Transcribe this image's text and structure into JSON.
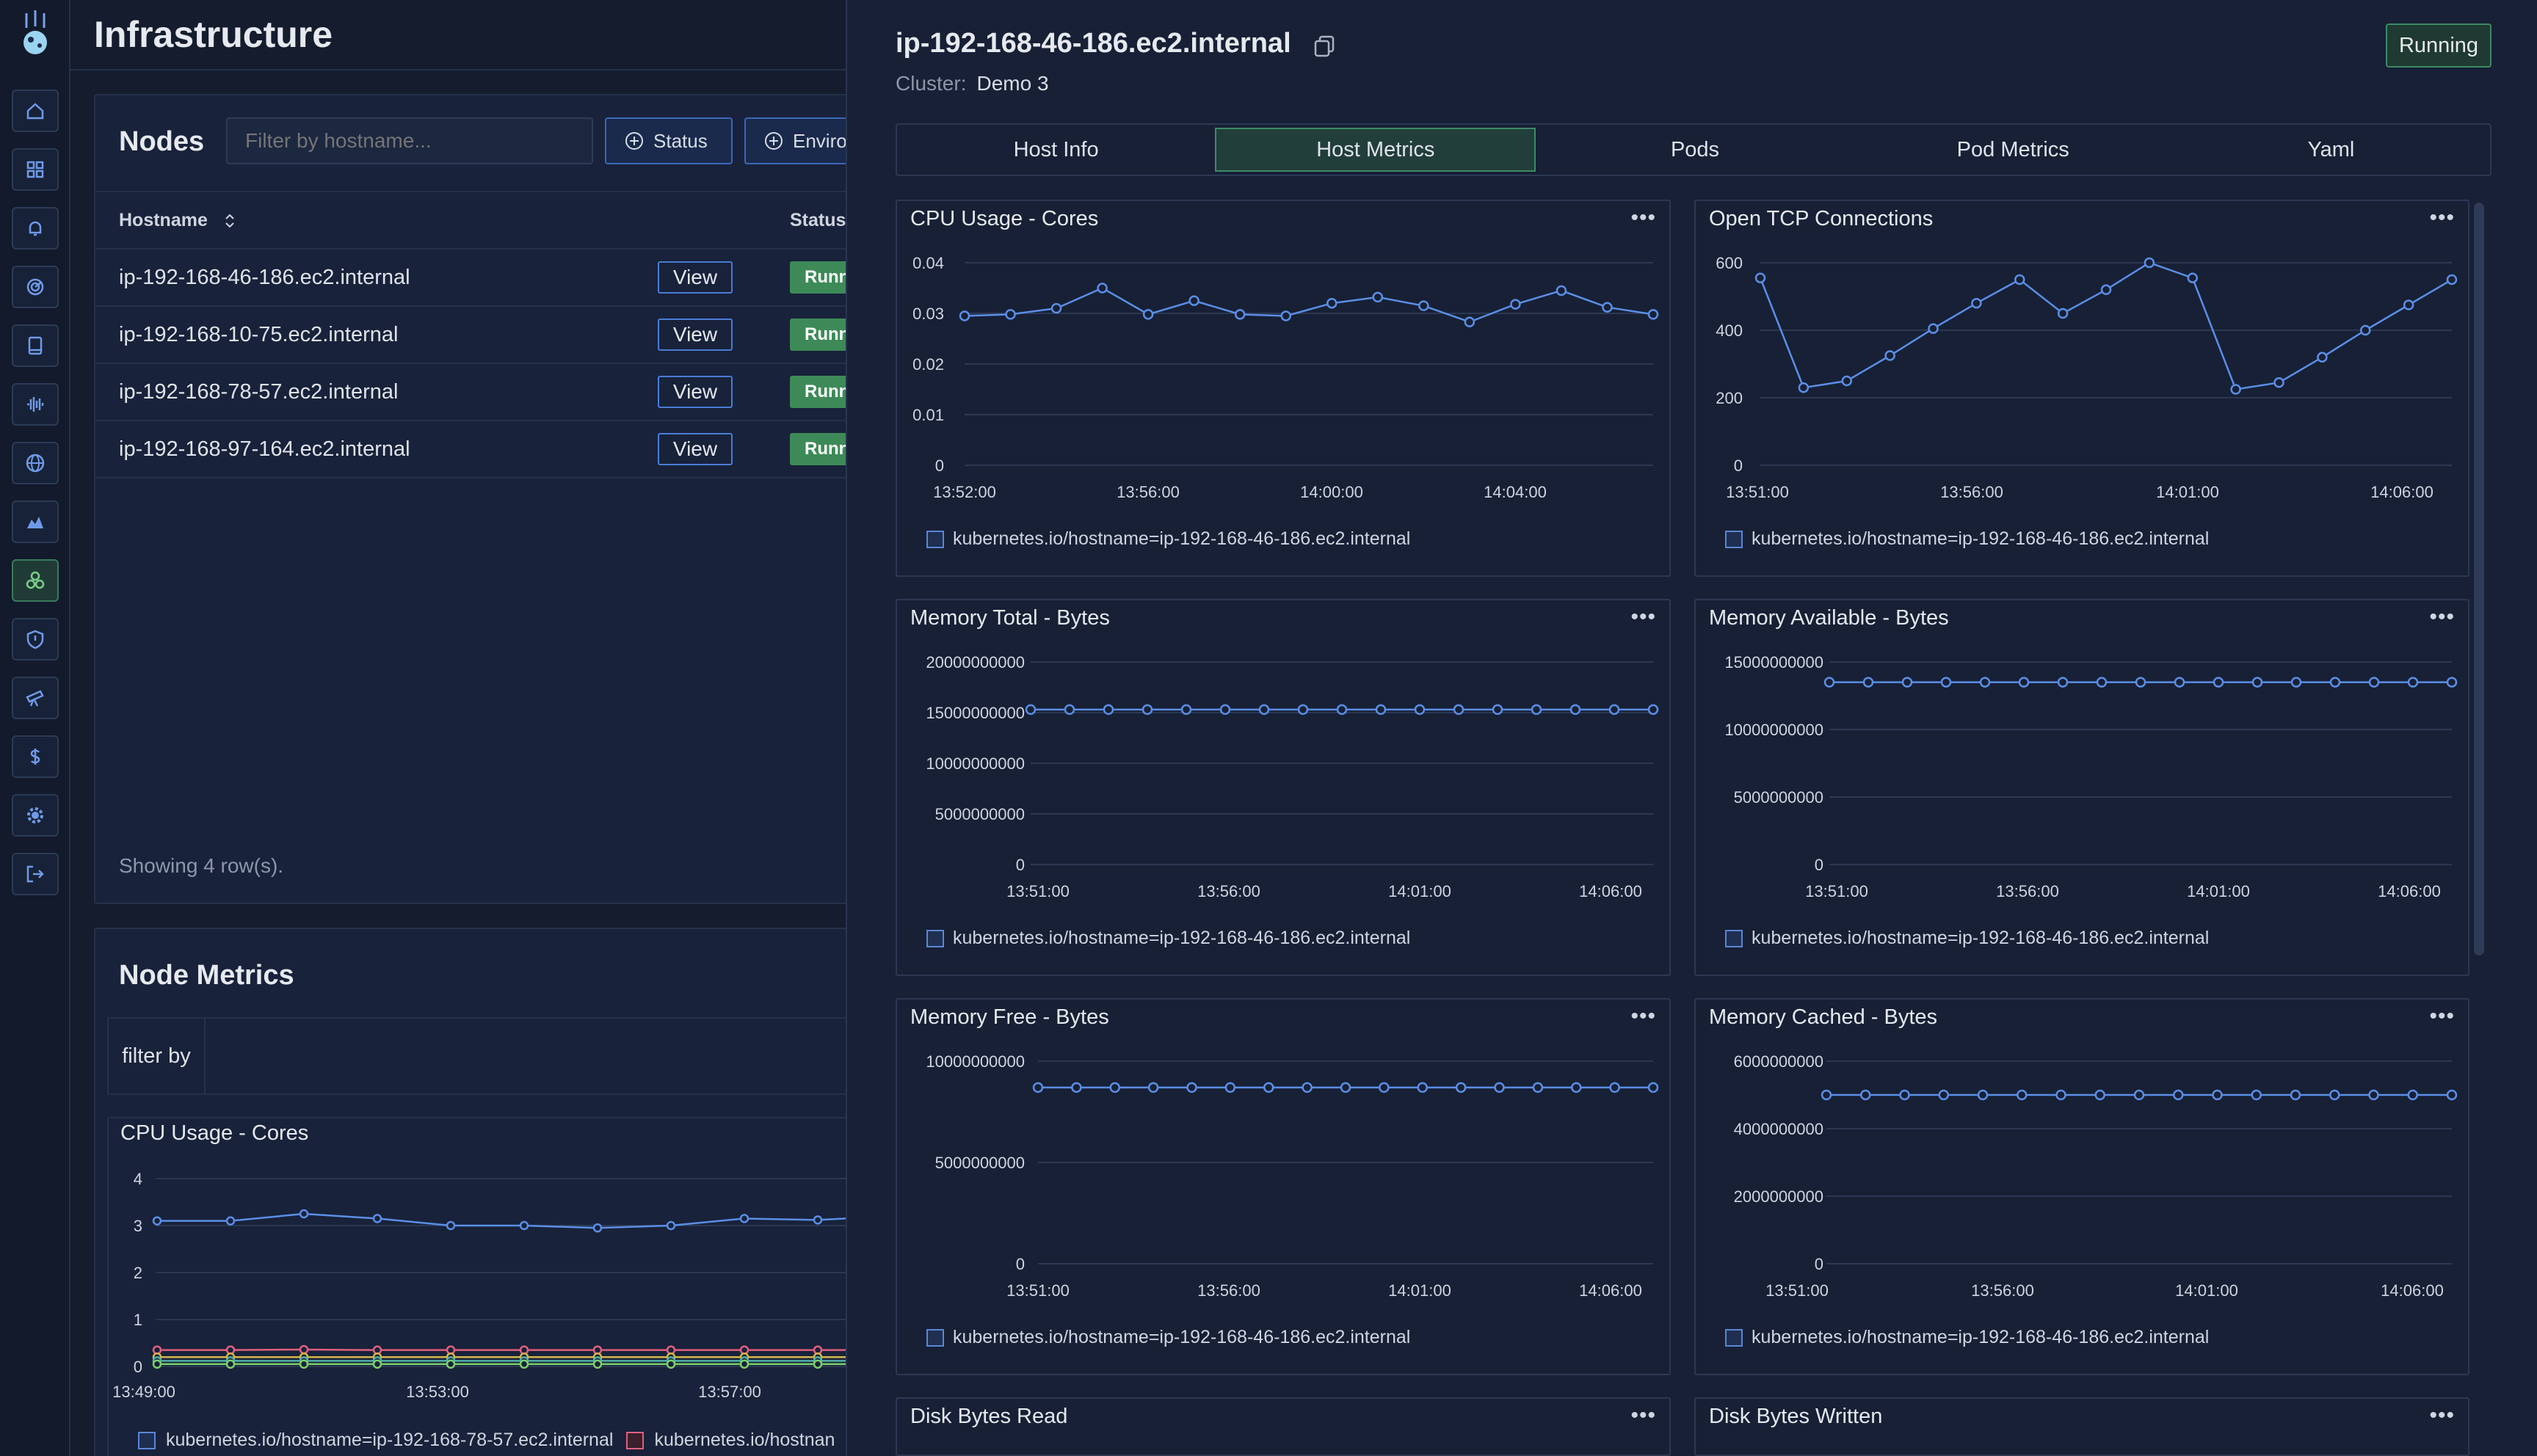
{
  "page": {
    "title": "Infrastructure"
  },
  "sidebar": {
    "items": [
      {
        "icon": "home-icon"
      },
      {
        "icon": "dashboard-icon"
      },
      {
        "icon": "bell-icon"
      },
      {
        "icon": "radar-icon"
      },
      {
        "icon": "book-icon"
      },
      {
        "icon": "waveform-icon"
      },
      {
        "icon": "globe-icon"
      },
      {
        "icon": "map-icon"
      },
      {
        "icon": "cluster-icon",
        "active": true
      },
      {
        "icon": "shield-icon"
      },
      {
        "icon": "telescope-icon"
      },
      {
        "icon": "dollar-icon"
      },
      {
        "icon": "gear-icon"
      },
      {
        "icon": "logout-icon"
      }
    ]
  },
  "nodes": {
    "title": "Nodes",
    "filter_placeholder": "Filter by hostname...",
    "status_btn": "Status",
    "env_btn": "Enviro",
    "headers": {
      "hostname": "Hostname",
      "status": "Status"
    },
    "rows": [
      {
        "hostname": "ip-192-168-46-186.ec2.internal",
        "view": "View",
        "status": "Running"
      },
      {
        "hostname": "ip-192-168-10-75.ec2.internal",
        "view": "View",
        "status": "Running"
      },
      {
        "hostname": "ip-192-168-78-57.ec2.internal",
        "view": "View",
        "status": "Running"
      },
      {
        "hostname": "ip-192-168-97-164.ec2.internal",
        "view": "View",
        "status": "Running"
      }
    ],
    "showing": "Showing 4 row(s)."
  },
  "node_metrics": {
    "title": "Node Metrics",
    "filter_label": "filter by",
    "chart_title": "CPU Usage - Cores",
    "legend": [
      "kubernetes.io/hostname=ip-192-168-78-57.ec2.internal",
      "kubernetes.io/hostnan"
    ]
  },
  "drawer": {
    "title": "ip-192-168-46-186.ec2.internal",
    "cluster_label": "Cluster:",
    "cluster_value": "Demo 3",
    "status": "Running",
    "tabs": [
      "Host Info",
      "Host Metrics",
      "Pods",
      "Pod Metrics",
      "Yaml"
    ],
    "active_tab": 1,
    "menu_glyph": "•••",
    "legend_label": "kubernetes.io/hostname=ip-192-168-46-186.ec2.internal",
    "partial_cards": [
      "Disk Bytes Read",
      "Disk Bytes Written"
    ]
  },
  "colors": {
    "line": "#5b8ee6",
    "grid": "#2c3852",
    "series_red": "#e0607e",
    "series_yellow": "#d4b64a",
    "series_teal": "#4fb0a8",
    "series_green": "#7ccf6a"
  },
  "chart_data": [
    {
      "id": "cpu",
      "type": "line",
      "title": "CPU Usage - Cores",
      "yticks": [
        "0.04",
        "0.03",
        "0.02",
        "0.01",
        "0"
      ],
      "ylim": [
        0,
        0.04
      ],
      "xticks": [
        "13:52:00",
        "13:56:00",
        "14:00:00",
        "14:04:00"
      ],
      "values": [
        0.0295,
        0.0298,
        0.031,
        0.035,
        0.0298,
        0.0325,
        0.0298,
        0.0295,
        0.032,
        0.0332,
        0.0315,
        0.0283,
        0.0318,
        0.0345,
        0.0312,
        0.0298
      ]
    },
    {
      "id": "tcp",
      "type": "line",
      "title": "Open TCP Connections",
      "yticks": [
        "600",
        "400",
        "200",
        "0"
      ],
      "ylim": [
        0,
        600
      ],
      "xticks": [
        "13:51:00",
        "13:56:00",
        "14:01:00",
        "14:06:00"
      ],
      "values": [
        555,
        230,
        250,
        325,
        405,
        480,
        550,
        450,
        520,
        600,
        555,
        225,
        245,
        320,
        400,
        475,
        550
      ]
    },
    {
      "id": "memtotal",
      "type": "line",
      "title": "Memory Total - Bytes",
      "yticks": [
        "20000000000",
        "15000000000",
        "10000000000",
        "5000000000",
        "0"
      ],
      "ylim": [
        0,
        20000000000
      ],
      "xticks": [
        "13:51:00",
        "13:56:00",
        "14:01:00",
        "14:06:00"
      ],
      "values": [
        15300000000,
        15300000000,
        15300000000,
        15300000000,
        15300000000,
        15300000000,
        15300000000,
        15300000000,
        15300000000,
        15300000000,
        15300000000,
        15300000000,
        15300000000,
        15300000000,
        15300000000,
        15300000000,
        15300000000
      ]
    },
    {
      "id": "memavail",
      "type": "line",
      "title": "Memory Available - Bytes",
      "yticks": [
        "15000000000",
        "10000000000",
        "5000000000",
        "0"
      ],
      "ylim": [
        0,
        15000000000
      ],
      "xticks": [
        "13:51:00",
        "13:56:00",
        "14:01:00",
        "14:06:00"
      ],
      "values": [
        13500000000,
        13500000000,
        13500000000,
        13500000000,
        13500000000,
        13500000000,
        13500000000,
        13500000000,
        13500000000,
        13500000000,
        13500000000,
        13500000000,
        13500000000,
        13500000000,
        13500000000,
        13500000000,
        13500000000
      ]
    },
    {
      "id": "memfree",
      "type": "line",
      "title": "Memory Free - Bytes",
      "yticks": [
        "10000000000",
        "5000000000",
        "0"
      ],
      "ylim": [
        0,
        10000000000
      ],
      "xticks": [
        "13:51:00",
        "13:56:00",
        "14:01:00",
        "14:06:00"
      ],
      "values": [
        8700000000,
        8700000000,
        8700000000,
        8700000000,
        8700000000,
        8700000000,
        8700000000,
        8700000000,
        8700000000,
        8700000000,
        8700000000,
        8700000000,
        8700000000,
        8700000000,
        8700000000,
        8700000000,
        8700000000
      ]
    },
    {
      "id": "memcached",
      "type": "line",
      "title": "Memory Cached - Bytes",
      "yticks": [
        "6000000000",
        "4000000000",
        "2000000000",
        "0"
      ],
      "ylim": [
        0,
        6000000000
      ],
      "xticks": [
        "13:51:00",
        "13:56:00",
        "14:01:00",
        "14:06:00"
      ],
      "values": [
        5000000000,
        5000000000,
        5000000000,
        5000000000,
        5000000000,
        5000000000,
        5000000000,
        5000000000,
        5000000000,
        5000000000,
        5000000000,
        5000000000,
        5000000000,
        5000000000,
        5000000000,
        5000000000,
        5000000000
      ]
    },
    {
      "id": "nodecpu",
      "type": "line",
      "title": "CPU Usage - Cores",
      "yticks": [
        "4",
        "3",
        "2",
        "1",
        "0"
      ],
      "ylim": [
        0,
        4
      ],
      "xticks": [
        "13:49:00",
        "13:53:00",
        "13:57:00"
      ],
      "series": [
        {
          "name": "kubernetes.io/hostname=ip-192-168-78-57.ec2.internal",
          "values": [
            3.1,
            3.1,
            3.25,
            3.15,
            3.0,
            3.0,
            2.95,
            3.0,
            3.15,
            3.12,
            3.2
          ]
        },
        {
          "name": "kubernetes.io/hostnan",
          "values": [
            0.35,
            0.35,
            0.36,
            0.35,
            0.35,
            0.35,
            0.35,
            0.35,
            0.35,
            0.35,
            0.35
          ]
        },
        {
          "values": [
            0.2,
            0.2,
            0.2,
            0.2,
            0.2,
            0.2,
            0.2,
            0.2,
            0.2,
            0.2,
            0.2
          ]
        },
        {
          "values": [
            0.12,
            0.12,
            0.12,
            0.12,
            0.12,
            0.12,
            0.12,
            0.12,
            0.12,
            0.12,
            0.12
          ]
        },
        {
          "values": [
            0.05,
            0.05,
            0.05,
            0.05,
            0.05,
            0.05,
            0.05,
            0.05,
            0.05,
            0.05,
            0.05
          ]
        }
      ]
    }
  ]
}
